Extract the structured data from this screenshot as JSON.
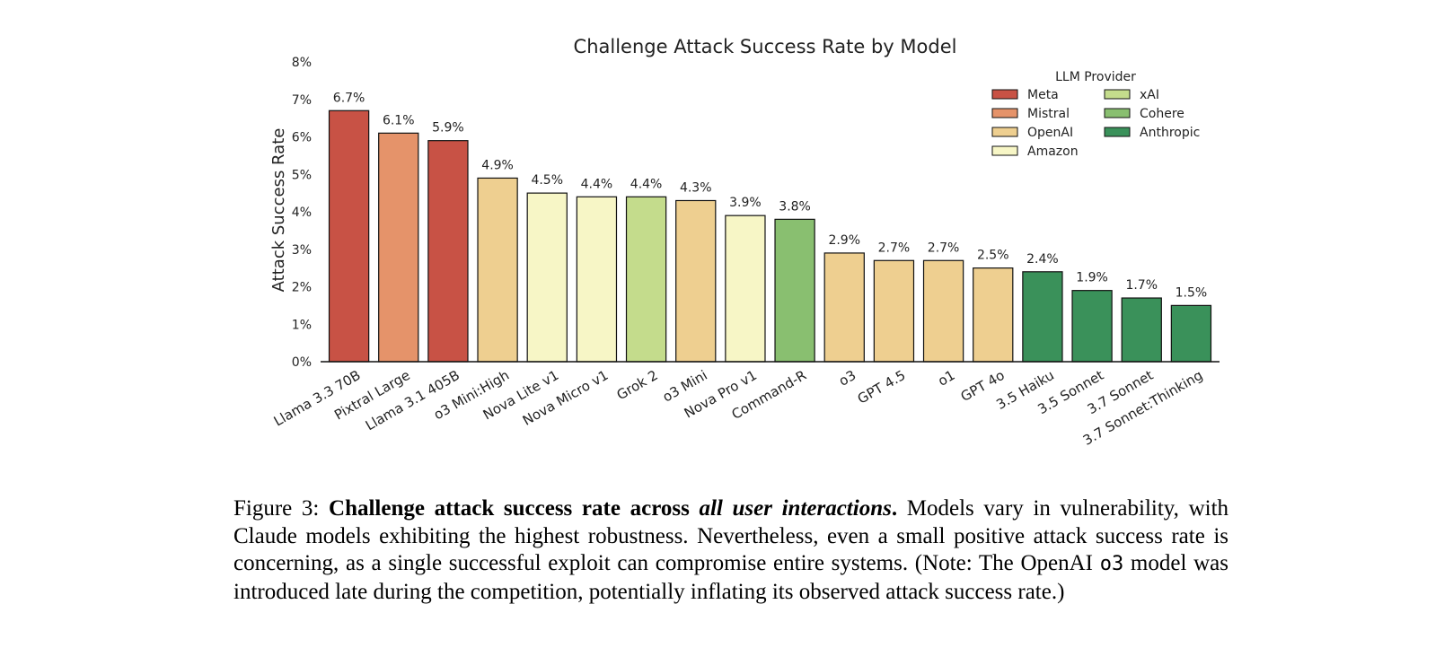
{
  "chart_data": {
    "type": "bar",
    "title": "Challenge Attack Success Rate by Model",
    "xlabel": "",
    "ylabel": "Attack Success Rate",
    "ylim": [
      0,
      8
    ],
    "yticks": [
      "0%",
      "1%",
      "2%",
      "3%",
      "4%",
      "5%",
      "6%",
      "7%",
      "8%"
    ],
    "grid": false,
    "legend": {
      "title": "LLM Provider",
      "placement": "top-right",
      "entries": [
        {
          "name": "Meta",
          "color": "#c85245"
        },
        {
          "name": "Mistral",
          "color": "#e5936a"
        },
        {
          "name": "OpenAI",
          "color": "#eecf90"
        },
        {
          "name": "Amazon",
          "color": "#f7f6c6"
        },
        {
          "name": "xAI",
          "color": "#c4dc8c"
        },
        {
          "name": "Cohere",
          "color": "#89bf70"
        },
        {
          "name": "Anthropic",
          "color": "#3a915a"
        }
      ]
    },
    "categories": [
      "Llama 3.3 70B",
      "Pixtral Large",
      "Llama 3.1 405B",
      "o3 Mini:High",
      "Nova Lite v1",
      "Nova Micro v1",
      "Grok 2",
      "o3 Mini",
      "Nova Pro v1",
      "Command-R",
      "o3",
      "GPT 4.5",
      "o1",
      "GPT 4o",
      "3.5 Haiku",
      "3.5 Sonnet",
      "3.7 Sonnet",
      "3.7 Sonnet:Thinking"
    ],
    "values": [
      6.7,
      6.1,
      5.9,
      4.9,
      4.5,
      4.4,
      4.4,
      4.3,
      3.9,
      3.8,
      2.9,
      2.7,
      2.7,
      2.5,
      2.4,
      1.9,
      1.7,
      1.5
    ],
    "labels": [
      "6.7%",
      "6.1%",
      "5.9%",
      "4.9%",
      "4.5%",
      "4.4%",
      "4.4%",
      "4.3%",
      "3.9%",
      "3.8%",
      "2.9%",
      "2.7%",
      "2.7%",
      "2.5%",
      "2.4%",
      "1.9%",
      "1.7%",
      "1.5%"
    ],
    "providers": [
      "Meta",
      "Mistral",
      "Meta",
      "OpenAI",
      "Amazon",
      "Amazon",
      "xAI",
      "OpenAI",
      "Amazon",
      "Cohere",
      "OpenAI",
      "OpenAI",
      "OpenAI",
      "OpenAI",
      "Anthropic",
      "Anthropic",
      "Anthropic",
      "Anthropic"
    ]
  },
  "caption": {
    "prefix": "Figure 3: ",
    "bold_part": "Challenge attack success rate across ",
    "bold_italic_part": "all user interactions",
    "bold_period": ".",
    "text_a": " Models vary in vulnerability, with Claude models exhibiting the highest robustness. Nevertheless, even a small positive attack success rate is concerning, as a single successful exploit can compromise entire systems. (Note: The OpenAI ",
    "mono_part": "o3",
    "text_b": " model was introduced late during the competition, potentially inflating its observed attack success rate.)"
  }
}
